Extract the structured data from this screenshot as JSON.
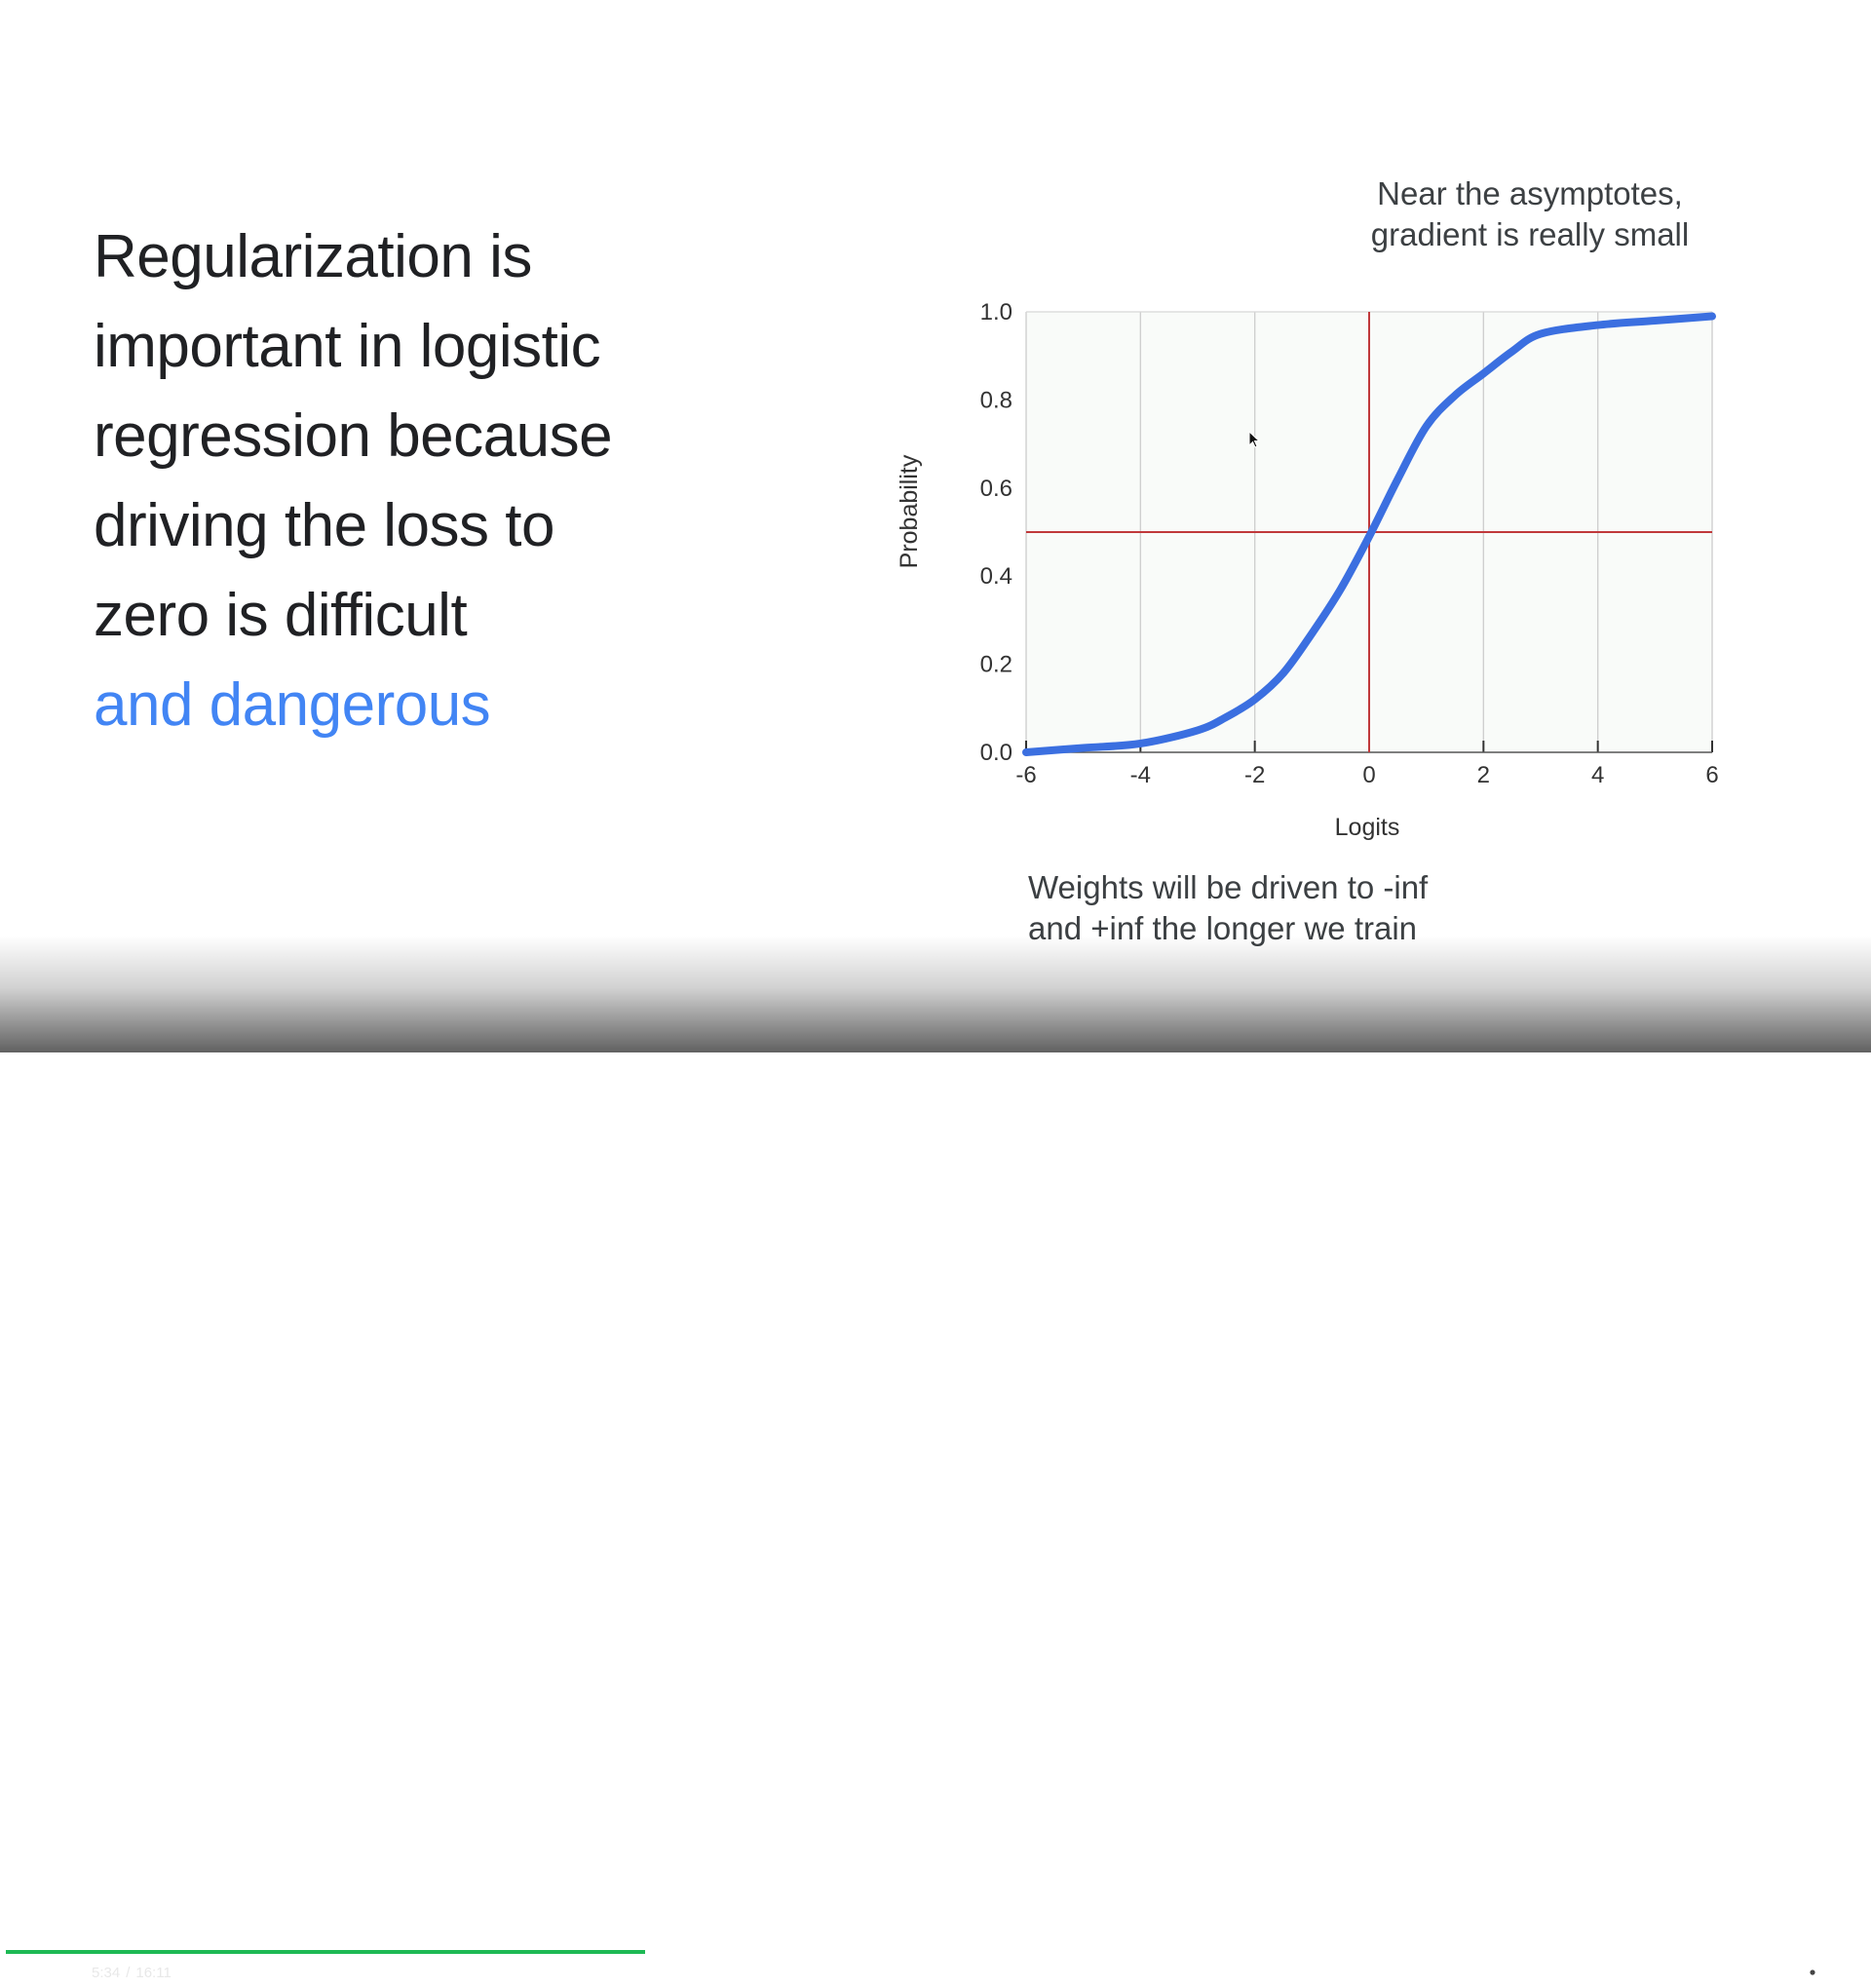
{
  "slide": {
    "headline_lines": [
      "Regularization is",
      "important in logistic",
      "regression because",
      "driving the loss to",
      "zero is difficult"
    ],
    "headline_accent": "and dangerous",
    "note_top_lines": [
      "Near the asymptotes,",
      "gradient is really small"
    ],
    "note_bottom_lines": [
      "Weights will be driven to -inf",
      "and +inf the longer we train"
    ],
    "accent_color": "#4285f4"
  },
  "chart_data": {
    "type": "line",
    "title": "",
    "xlabel": "Logits",
    "ylabel": "Probability",
    "xlim": [
      -6,
      6
    ],
    "ylim": [
      0,
      1
    ],
    "x_ticks": [
      "-6",
      "-4",
      "-2",
      "0",
      "2",
      "4",
      "6"
    ],
    "y_ticks": [
      "0.0",
      "0.2",
      "0.4",
      "0.6",
      "0.8",
      "1.0"
    ],
    "grid": "vertical",
    "series": [
      {
        "color": "#3b6fe0",
        "x": [
          -6,
          -5,
          -4,
          -3,
          -2.5,
          -2,
          -1.5,
          -1,
          -0.5,
          0,
          0.5,
          1,
          1.5,
          2,
          2.5,
          3,
          4,
          5,
          6
        ],
        "y": [
          0.0,
          0.01,
          0.02,
          0.05,
          0.08,
          0.12,
          0.18,
          0.27,
          0.37,
          0.49,
          0.62,
          0.74,
          0.81,
          0.86,
          0.91,
          0.95,
          0.97,
          0.98,
          0.99
        ]
      }
    ],
    "reference_lines": [
      {
        "axis": "x",
        "value": 0,
        "color": "#c0393b"
      },
      {
        "axis": "y",
        "value": 0.5,
        "color": "#c0393b"
      }
    ]
  },
  "player": {
    "current_time": "5:34",
    "separator": "/",
    "duration": "16:11",
    "progress": 0.344,
    "progress_color": "#1db954",
    "icons": {
      "play_pause": "pause-icon",
      "volume": "volume-icon",
      "captions": "captions-icon",
      "settings": "gear-icon",
      "fullscreen": "exit-fullscreen-icon"
    }
  }
}
